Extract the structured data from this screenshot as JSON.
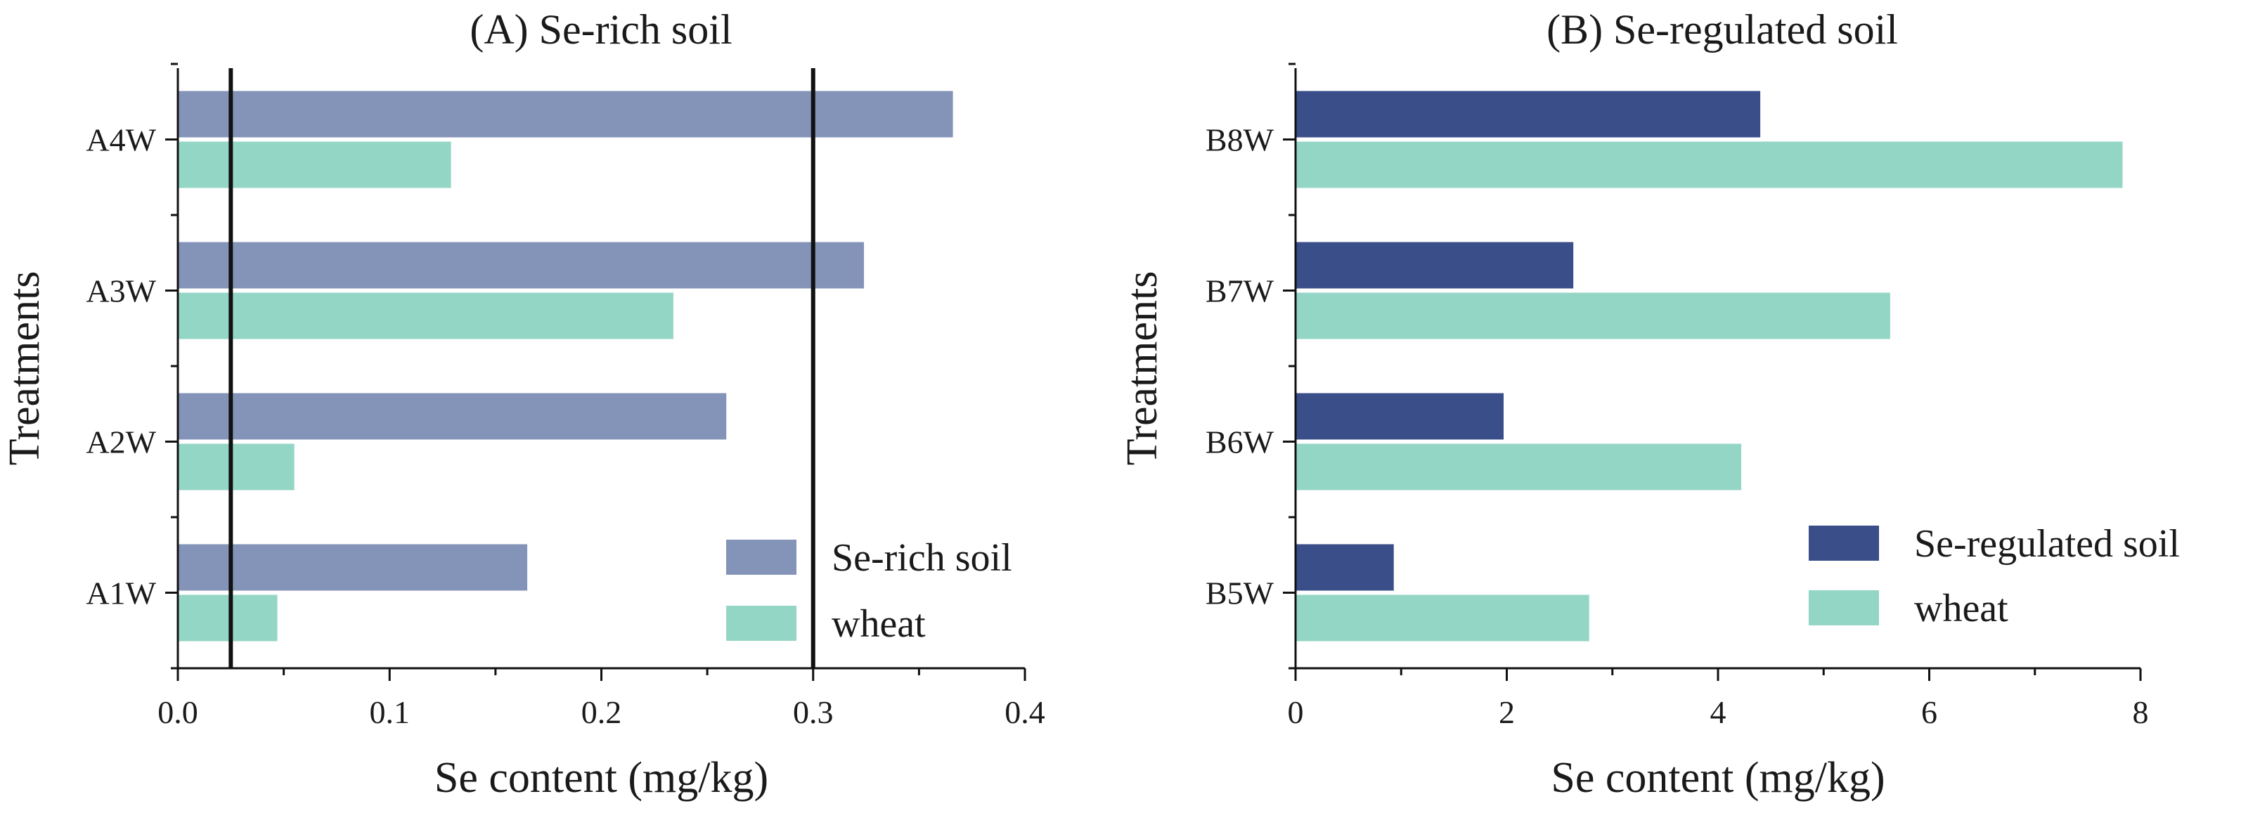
{
  "chart_data": [
    {
      "type": "bar",
      "orientation": "horizontal",
      "title": "(A) Se-rich soil",
      "xlabel": "Se content (mg/kg)",
      "ylabel": "Treatments",
      "categories": [
        "A1W",
        "A2W",
        "A3W",
        "A4W"
      ],
      "series": [
        {
          "name": "Se-rich soil",
          "color": "#8494b8",
          "values": [
            0.165,
            0.259,
            0.324,
            0.366
          ]
        },
        {
          "name": "wheat",
          "color": "#94d6c6",
          "values": [
            0.047,
            0.055,
            0.234,
            0.129
          ]
        }
      ],
      "xlim": [
        0.0,
        0.4
      ],
      "xticks": [
        "0.0",
        "0.1",
        "0.2",
        "0.3",
        "0.4"
      ],
      "reference_lines": [
        0.025,
        0.3
      ],
      "legend_position": "bottom-right"
    },
    {
      "type": "bar",
      "orientation": "horizontal",
      "title": "(B) Se-regulated soil",
      "xlabel": "Se content (mg/kg)",
      "ylabel": "Treatments",
      "categories": [
        "B5W",
        "B6W",
        "B7W",
        "B8W"
      ],
      "series": [
        {
          "name": "Se-regulated soil",
          "color": "#3a4e8a",
          "values": [
            0.93,
            1.97,
            2.63,
            4.4
          ]
        },
        {
          "name": "wheat",
          "color": "#94d6c6",
          "values": [
            2.78,
            4.22,
            5.63,
            7.83
          ]
        }
      ],
      "xlim": [
        0,
        8
      ],
      "xticks": [
        "0",
        "2",
        "4",
        "6",
        "8"
      ],
      "reference_lines": [],
      "legend_position": "bottom-right"
    }
  ]
}
